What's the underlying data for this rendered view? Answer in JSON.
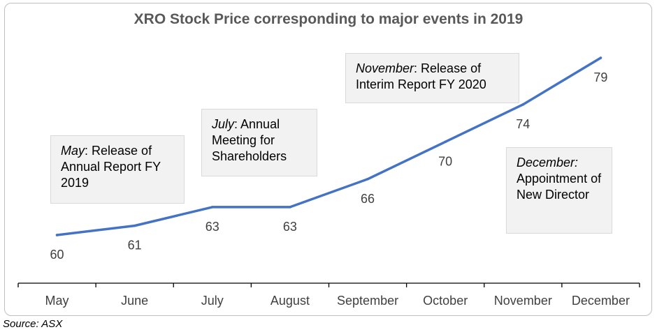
{
  "chart_data": {
    "type": "line",
    "title": "XRO Stock Price corresponding to major events in 2019",
    "categories": [
      "May",
      "June",
      "July",
      "August",
      "September",
      "October",
      "November",
      "December"
    ],
    "series": [
      {
        "values": [
          60,
          61,
          63,
          63,
          66,
          70,
          74,
          79
        ],
        "color": "#4472c4"
      }
    ],
    "data_labels": [
      "60",
      "61",
      "63",
      "63",
      "66",
      "70",
      "74",
      "79"
    ],
    "ylim": [
      54,
      80
    ],
    "grid": false,
    "annotations": [
      {
        "id": "may",
        "month": "May",
        "text": ": Release of Annual Report FY 2019"
      },
      {
        "id": "july",
        "month": "July",
        "text": ": Annual Meeting for Shareholders"
      },
      {
        "id": "november",
        "month": "November",
        "text": ": Release of Interim Report FY 2020"
      },
      {
        "id": "december",
        "month": "December:",
        "text": " Appointment of New Director"
      }
    ]
  },
  "source": "Source: ASX"
}
